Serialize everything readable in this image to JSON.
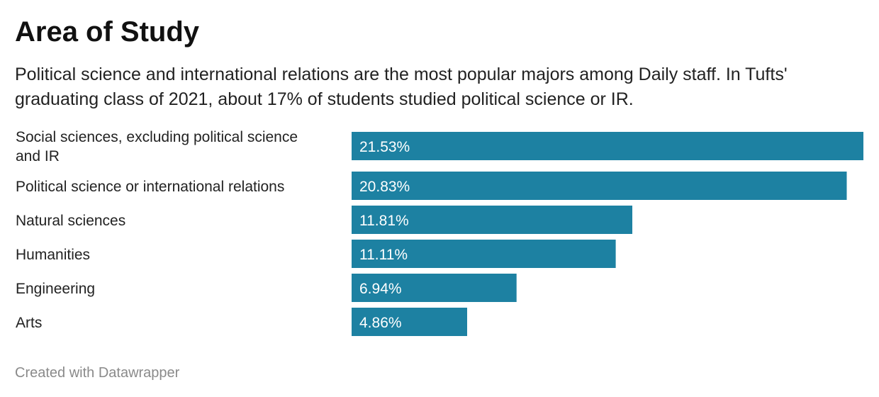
{
  "header": {
    "title": "Area of Study",
    "description": "Political science and international relations are the most popular majors among Daily staff. In Tufts' graduating class of 2021, about 17% of students studied political science or IR."
  },
  "footer": {
    "credit": "Created with Datawrapper"
  },
  "chart_data": {
    "type": "bar",
    "orientation": "horizontal",
    "title": "Area of Study",
    "categories": [
      "Social sciences, excluding political science and IR",
      "Political science or international relations",
      "Natural sciences",
      "Humanities",
      "Engineering",
      "Arts"
    ],
    "category_label_lines": [
      [
        "Social sciences, excluding political science",
        "and IR"
      ],
      [
        "Political science or international relations"
      ],
      [
        "Natural sciences"
      ],
      [
        "Humanities"
      ],
      [
        "Engineering"
      ],
      [
        "Arts"
      ]
    ],
    "values": [
      21.53,
      20.83,
      11.81,
      11.11,
      6.94,
      4.86
    ],
    "value_labels": [
      "21.53%",
      "20.83%",
      "11.81%",
      "11.11%",
      "6.94%",
      "4.86%"
    ],
    "xlim": [
      0,
      21.53
    ],
    "bar_color": "#1d81a2",
    "label_color": "#ffffff",
    "grid": false,
    "legend": "none"
  }
}
